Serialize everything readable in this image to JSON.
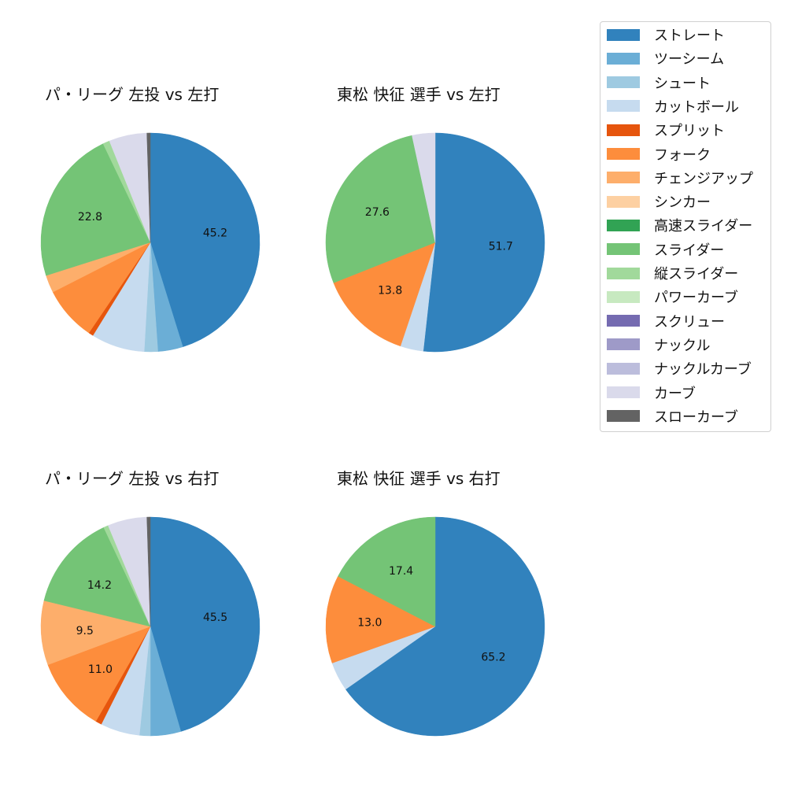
{
  "legend": {
    "items": [
      {
        "label": "ストレート",
        "color": "#3182bd"
      },
      {
        "label": "ツーシーム",
        "color": "#6baed6"
      },
      {
        "label": "シュート",
        "color": "#9ecae1"
      },
      {
        "label": "カットボール",
        "color": "#c6dbef"
      },
      {
        "label": "スプリット",
        "color": "#e6550d"
      },
      {
        "label": "フォーク",
        "color": "#fd8d3c"
      },
      {
        "label": "チェンジアップ",
        "color": "#fdae6b"
      },
      {
        "label": "シンカー",
        "color": "#fdd0a2"
      },
      {
        "label": "高速スライダー",
        "color": "#31a354"
      },
      {
        "label": "スライダー",
        "color": "#74c476"
      },
      {
        "label": "縦スライダー",
        "color": "#a1d99b"
      },
      {
        "label": "パワーカーブ",
        "color": "#c7e9c0"
      },
      {
        "label": "スクリュー",
        "color": "#756bb1"
      },
      {
        "label": "ナックル",
        "color": "#9e9ac8"
      },
      {
        "label": "ナックルカーブ",
        "color": "#bcbddc"
      },
      {
        "label": "カーブ",
        "color": "#dadaeb"
      },
      {
        "label": "スローカーブ",
        "color": "#636363"
      }
    ]
  },
  "panels": [
    {
      "title": "パ・リーグ 左投 vs 左打"
    },
    {
      "title": "東松 快征 選手 vs 左打"
    },
    {
      "title": "パ・リーグ 左投 vs 右打"
    },
    {
      "title": "東松 快征 選手 vs 右打"
    }
  ],
  "chart_data": [
    {
      "type": "pie",
      "title": "パ・リーグ 左投 vs 左打",
      "start_angle": 90,
      "direction": "clockwise",
      "slices": [
        {
          "name": "ストレート",
          "value": 45.2,
          "label": "45.2",
          "color": "#3182bd"
        },
        {
          "name": "ツーシーム",
          "value": 3.7,
          "label": "",
          "color": "#6baed6"
        },
        {
          "name": "シュート",
          "value": 2.0,
          "label": "",
          "color": "#9ecae1"
        },
        {
          "name": "カットボール",
          "value": 7.9,
          "label": "",
          "color": "#c6dbef"
        },
        {
          "name": "スプリット",
          "value": 0.7,
          "label": "",
          "color": "#e6550d"
        },
        {
          "name": "フォーク",
          "value": 8.0,
          "label": "",
          "color": "#fd8d3c"
        },
        {
          "name": "チェンジアップ",
          "value": 2.6,
          "label": "",
          "color": "#fdae6b"
        },
        {
          "name": "スライダー",
          "value": 22.8,
          "label": "22.8",
          "color": "#74c476"
        },
        {
          "name": "縦スライダー",
          "value": 1.0,
          "label": "",
          "color": "#a1d99b"
        },
        {
          "name": "カーブ",
          "value": 5.6,
          "label": "",
          "color": "#dadaeb"
        },
        {
          "name": "スローカーブ",
          "value": 0.5,
          "label": "",
          "color": "#636363"
        }
      ]
    },
    {
      "type": "pie",
      "title": "東松 快征 選手 vs 左打",
      "start_angle": 90,
      "direction": "clockwise",
      "slices": [
        {
          "name": "ストレート",
          "value": 51.7,
          "label": "51.7",
          "color": "#3182bd"
        },
        {
          "name": "カットボール",
          "value": 3.4,
          "label": "",
          "color": "#c6dbef"
        },
        {
          "name": "フォーク",
          "value": 13.8,
          "label": "13.8",
          "color": "#fd8d3c"
        },
        {
          "name": "スライダー",
          "value": 27.6,
          "label": "27.6",
          "color": "#74c476"
        },
        {
          "name": "カーブ",
          "value": 3.4,
          "label": "",
          "color": "#dadaeb"
        }
      ]
    },
    {
      "type": "pie",
      "title": "パ・リーグ 左投 vs 右打",
      "start_angle": 90,
      "direction": "clockwise",
      "slices": [
        {
          "name": "ストレート",
          "value": 45.5,
          "label": "45.5",
          "color": "#3182bd"
        },
        {
          "name": "ツーシーム",
          "value": 4.5,
          "label": "",
          "color": "#6baed6"
        },
        {
          "name": "シュート",
          "value": 1.6,
          "label": "",
          "color": "#9ecae1"
        },
        {
          "name": "カットボール",
          "value": 5.8,
          "label": "",
          "color": "#c6dbef"
        },
        {
          "name": "スプリット",
          "value": 0.9,
          "label": "",
          "color": "#e6550d"
        },
        {
          "name": "フォーク",
          "value": 11.0,
          "label": "11.0",
          "color": "#fd8d3c"
        },
        {
          "name": "チェンジアップ",
          "value": 9.5,
          "label": "9.5",
          "color": "#fdae6b"
        },
        {
          "name": "スライダー",
          "value": 14.2,
          "label": "14.2",
          "color": "#74c476"
        },
        {
          "name": "縦スライダー",
          "value": 0.7,
          "label": "",
          "color": "#a1d99b"
        },
        {
          "name": "カーブ",
          "value": 5.8,
          "label": "",
          "color": "#dadaeb"
        },
        {
          "name": "スローカーブ",
          "value": 0.5,
          "label": "",
          "color": "#636363"
        }
      ]
    },
    {
      "type": "pie",
      "title": "東松 快征 選手 vs 右打",
      "start_angle": 90,
      "direction": "clockwise",
      "slices": [
        {
          "name": "ストレート",
          "value": 65.2,
          "label": "65.2",
          "color": "#3182bd"
        },
        {
          "name": "カットボール",
          "value": 4.3,
          "label": "",
          "color": "#c6dbef"
        },
        {
          "name": "フォーク",
          "value": 13.0,
          "label": "13.0",
          "color": "#fd8d3c"
        },
        {
          "name": "スライダー",
          "value": 17.4,
          "label": "17.4",
          "color": "#74c476"
        }
      ]
    }
  ]
}
